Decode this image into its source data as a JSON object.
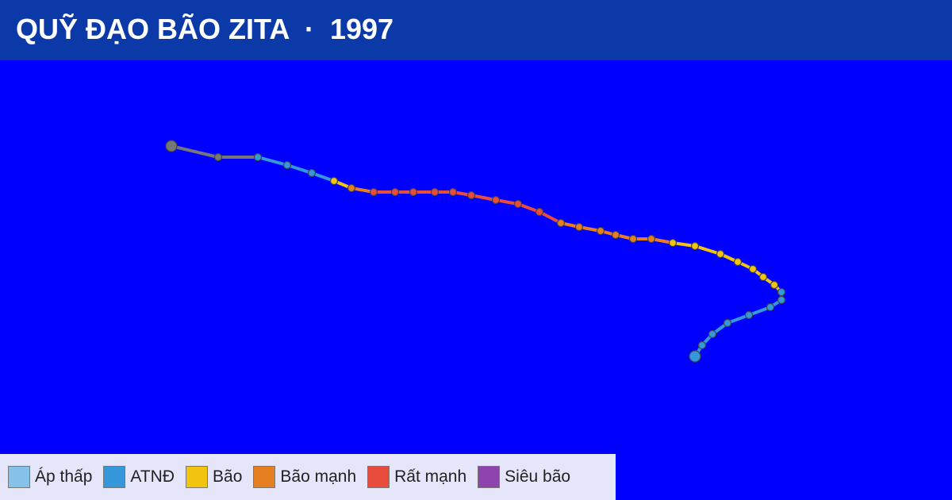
{
  "header": {
    "title": "QUỸ ĐẠO BÃO ZITA  ·  1997"
  },
  "legend": {
    "items": [
      {
        "label": "Áp thấp",
        "color": "#85c1e9"
      },
      {
        "label": "ATNĐ",
        "color": "#3498db"
      },
      {
        "label": "Bão",
        "color": "#f1c40f"
      },
      {
        "label": "Bão mạnh",
        "color": "#e67e22"
      },
      {
        "label": "Rất mạnh",
        "color": "#e74c3c"
      },
      {
        "label": "Siêu bão",
        "color": "#8e44ad"
      }
    ]
  }
}
